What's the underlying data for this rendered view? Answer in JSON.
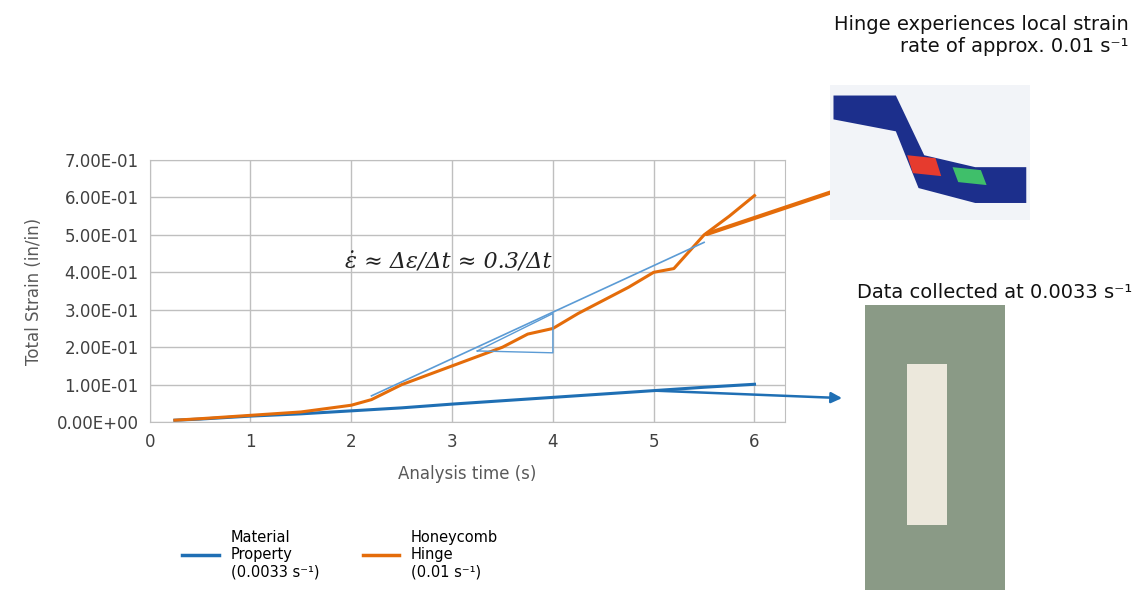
{
  "chart_data": {
    "type": "line",
    "x_label": "Analysis time (s)",
    "y_label": "Total Strain (in/in)",
    "xlim": [
      0,
      6.3
    ],
    "xticks": [
      0,
      1,
      2,
      3,
      4,
      5,
      6
    ],
    "ylim": [
      0,
      0.7
    ],
    "yticks": [
      {
        "value": 0,
        "label": "0.00E+00"
      },
      {
        "value": 0.1,
        "label": "1.00E-01"
      },
      {
        "value": 0.2,
        "label": "2.00E-01"
      },
      {
        "value": 0.3,
        "label": "3.00E-01"
      },
      {
        "value": 0.4,
        "label": "4.00E-01"
      },
      {
        "value": 0.5,
        "label": "5.00E-01"
      },
      {
        "value": 0.6,
        "label": "6.00E-01"
      },
      {
        "value": 0.7,
        "label": "7.00E-01"
      }
    ],
    "grid": true,
    "legend": "upper center",
    "series": [
      {
        "name": "Material\nProperty\n(0.0033 s⁻¹)",
        "color": "#1f6fb4",
        "x": [
          0.25,
          0.5,
          1,
          1.5,
          2,
          2.5,
          3,
          3.5,
          4,
          4.5,
          5,
          5.5,
          6
        ],
        "values": [
          0.005,
          0.008,
          0.016,
          0.022,
          0.03,
          0.038,
          0.048,
          0.057,
          0.066,
          0.075,
          0.084,
          0.093,
          0.101
        ]
      },
      {
        "name": "Honeycomb\nHinge\n(0.01 s⁻¹)",
        "color": "#e46c0a",
        "x": [
          0.25,
          0.5,
          1,
          1.5,
          2,
          2.2,
          2.5,
          3,
          3.25,
          3.5,
          3.75,
          4,
          4.25,
          4.5,
          4.75,
          5,
          5.2,
          5.5,
          5.75,
          6
        ],
        "values": [
          0.005,
          0.009,
          0.018,
          0.027,
          0.045,
          0.06,
          0.1,
          0.15,
          0.175,
          0.2,
          0.235,
          0.25,
          0.29,
          0.325,
          0.36,
          0.4,
          0.41,
          0.5,
          0.55,
          0.605
        ]
      }
    ],
    "slope_line": {
      "x": [
        2.2,
        5.5
      ],
      "y": [
        0.07,
        0.48
      ]
    },
    "slope_triangle": {
      "x": [
        3.25,
        4.0,
        4.0
      ],
      "y": [
        0.19,
        0.185,
        0.29
      ]
    },
    "annotations": {
      "formula": "ε̇ ≈ Δε/Δt ≈ 0.3/Δt",
      "hinge_note": "Hinge experiences local strain\nrate of approx. 0.01 s⁻¹",
      "data_note": "Data collected at 0.0033 s⁻¹"
    }
  }
}
